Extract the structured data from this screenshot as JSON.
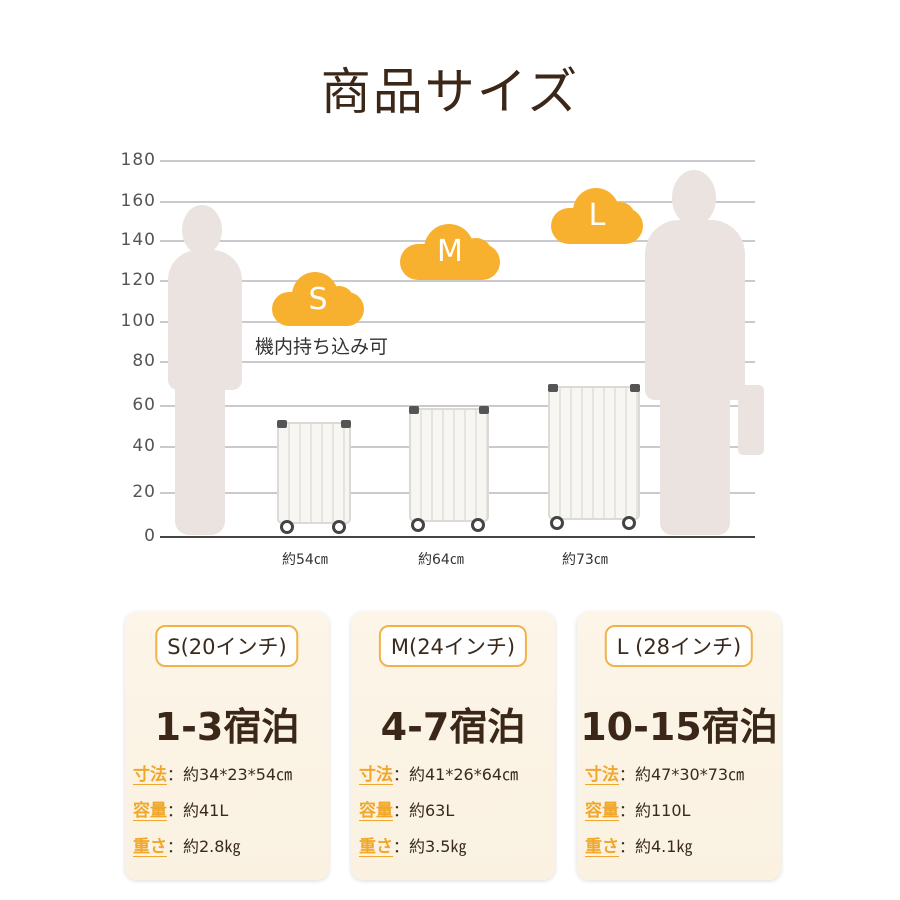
{
  "title": "商品サイズ",
  "scale_ticks": [
    "180",
    "160",
    "140",
    "120",
    "100",
    "80",
    "60",
    "40",
    "20",
    "0"
  ],
  "sizes": [
    {
      "letter": "S",
      "height_label": "約54㎝",
      "note": "機内持ち込み可"
    },
    {
      "letter": "M",
      "height_label": "約64㎝"
    },
    {
      "letter": "L",
      "height_label": "約73㎝"
    }
  ],
  "colors": {
    "accent": "#f8b12e",
    "text": "#3b2718",
    "silhouette": "#ebe3df"
  },
  "cards": [
    {
      "name": "S(20インチ)",
      "stay": "1-3宿泊",
      "dim_label": "寸法",
      "dim": "：約34*23*54㎝",
      "cap_label": "容量",
      "cap": "：約41L",
      "wt_label": "重さ",
      "wt": "：約2.8㎏"
    },
    {
      "name": "M(24インチ)",
      "stay": "4-7宿泊",
      "dim_label": "寸法",
      "dim": "：約41*26*64㎝",
      "cap_label": "容量",
      "cap": "：約63L",
      "wt_label": "重さ",
      "wt": "：約3.5㎏"
    },
    {
      "name": "L (28インチ)",
      "stay": "10-15宿泊",
      "dim_label": "寸法",
      "dim": "：約47*30*73㎝",
      "cap_label": "容量",
      "cap": "：約110L",
      "wt_label": "重さ",
      "wt": "：約4.1㎏"
    }
  ]
}
